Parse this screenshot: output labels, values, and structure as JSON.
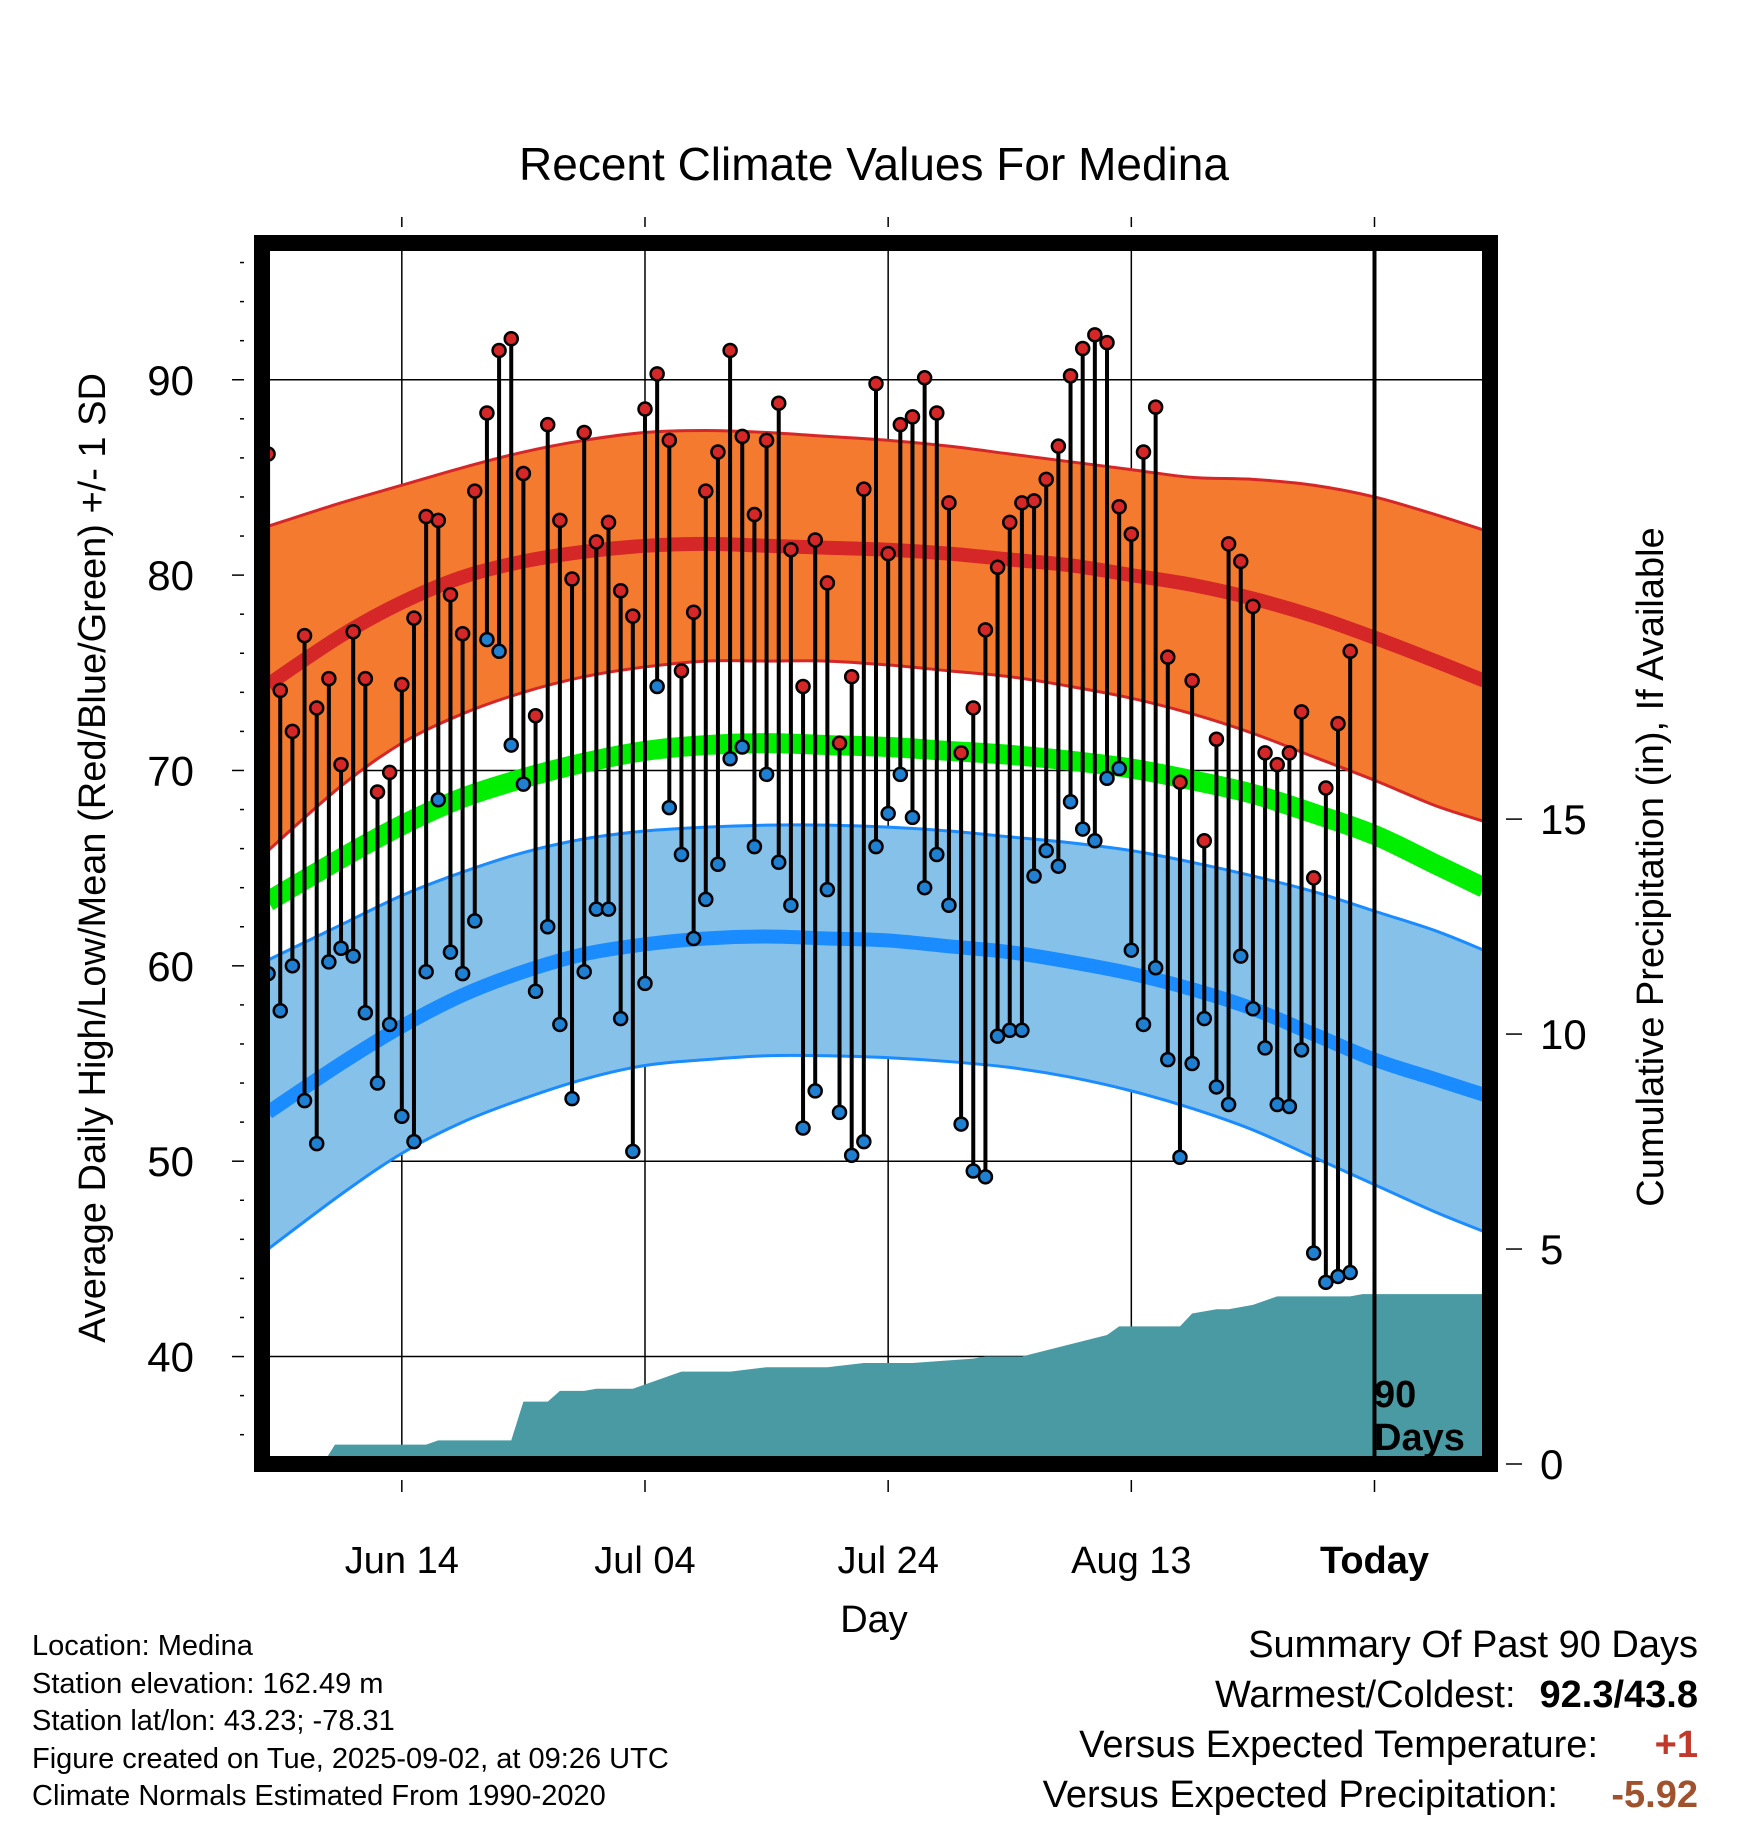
{
  "chart_data": {
    "type": "line",
    "title": "Recent Climate Values For Medina",
    "xlabel": "Day",
    "ylabel": "Average Daily High/Low/Mean (Red/Blue/Green) +/- 1 SD",
    "y2label": "Cumulative Precipitation (in), If Available",
    "ylim": [
      34.5,
      97
    ],
    "y2lim": [
      0,
      28.4
    ],
    "yticks": [
      "40",
      "50",
      "60",
      "70",
      "80",
      "90"
    ],
    "y2ticks": [
      "0",
      "5",
      "10",
      "15"
    ],
    "xlim": [
      -11.5,
      89.5
    ],
    "xticks": [
      {
        "label": "Jun 14",
        "day": 0
      },
      {
        "label": "Jul 04",
        "day": 20
      },
      {
        "label": "Jul 24",
        "day": 40
      },
      {
        "label": "Aug 13",
        "day": 60
      },
      {
        "label": "Today",
        "day": 80
      }
    ],
    "today_day": 80,
    "period_label_line1": "90",
    "period_label_line2": "Days",
    "grid": true,
    "colors": {
      "high_band": "#f47a30",
      "high_line": "#d62728",
      "low_band": "#85c1e9",
      "low_line": "#1a8cff",
      "mean_line": "#00ee00",
      "precip": "#4a9aa4",
      "high_marker": "#d62728",
      "low_marker": "#1f7fd1",
      "warm_value": "#c0392b",
      "precip_value": "#a0522d"
    },
    "normals": {
      "days": [
        -11,
        -5,
        0,
        5,
        10,
        15,
        20,
        25,
        30,
        35,
        40,
        45,
        50,
        55,
        60,
        65,
        70,
        75,
        80,
        85,
        89
      ],
      "high_upper": [
        82.5,
        83.7,
        84.6,
        85.5,
        86.3,
        86.9,
        87.3,
        87.4,
        87.3,
        87.1,
        86.9,
        86.6,
        86.2,
        85.8,
        85.4,
        85.0,
        84.9,
        84.6,
        84.0,
        83.1,
        82.3
      ],
      "high_mean": [
        74.4,
        76.9,
        78.6,
        79.9,
        80.7,
        81.2,
        81.5,
        81.6,
        81.5,
        81.4,
        81.3,
        81.1,
        80.8,
        80.5,
        80.0,
        79.5,
        78.8,
        77.9,
        76.8,
        75.6,
        74.6
      ],
      "high_lower": [
        65.9,
        69.2,
        71.4,
        72.9,
        74.0,
        74.8,
        75.3,
        75.6,
        75.6,
        75.6,
        75.4,
        75.1,
        74.8,
        74.3,
        73.7,
        72.9,
        71.9,
        70.7,
        69.5,
        68.2,
        67.4
      ],
      "mean": [
        63.3,
        65.5,
        67.2,
        68.6,
        69.6,
        70.4,
        71.0,
        71.3,
        71.4,
        71.3,
        71.2,
        71.0,
        70.8,
        70.5,
        70.1,
        69.5,
        68.8,
        67.8,
        66.7,
        65.2,
        64.0
      ],
      "low_upper": [
        60.3,
        62.1,
        63.6,
        64.8,
        65.8,
        66.5,
        66.9,
        67.1,
        67.2,
        67.2,
        67.1,
        66.9,
        66.6,
        66.3,
        65.9,
        65.3,
        64.6,
        63.8,
        62.8,
        61.8,
        60.8
      ],
      "low_mean": [
        52.5,
        55.0,
        56.9,
        58.5,
        59.7,
        60.6,
        61.1,
        61.4,
        61.5,
        61.4,
        61.3,
        61.0,
        60.7,
        60.2,
        59.6,
        58.8,
        57.8,
        56.5,
        55.2,
        54.2,
        53.4
      ],
      "low_lower": [
        45.5,
        48.3,
        50.4,
        52.0,
        53.2,
        54.2,
        54.9,
        55.2,
        55.4,
        55.4,
        55.3,
        55.1,
        54.8,
        54.3,
        53.6,
        52.7,
        51.6,
        50.2,
        48.8,
        47.4,
        46.4
      ]
    },
    "daily": {
      "high": [
        86.2,
        74.1,
        72.0,
        76.9,
        73.2,
        74.7,
        70.3,
        77.1,
        74.7,
        68.9,
        69.9,
        74.4,
        77.8,
        83.0,
        82.8,
        79.0,
        77.0,
        84.3,
        88.3,
        91.5,
        92.1,
        85.2,
        72.8,
        87.7,
        82.8,
        79.8,
        87.3,
        81.7,
        82.7,
        79.2,
        77.9,
        88.5,
        90.3,
        86.9,
        75.1,
        78.1,
        84.3,
        86.3,
        91.5,
        87.1,
        83.1,
        86.9,
        88.8,
        81.3,
        74.3,
        81.8,
        79.6,
        71.4,
        74.8,
        84.4,
        89.8,
        81.1,
        87.7,
        88.1,
        90.1,
        88.3,
        83.7,
        70.9,
        73.2,
        77.2,
        80.4,
        82.7,
        83.7,
        83.8,
        84.9,
        86.6,
        90.2,
        91.6,
        92.3,
        91.9,
        83.5,
        82.1,
        86.3,
        88.6,
        75.8,
        69.4,
        74.6,
        66.4,
        71.6,
        81.6,
        80.7,
        78.4,
        70.9,
        70.3,
        70.9,
        73.0,
        64.5,
        69.1,
        72.4,
        76.1
      ],
      "low": [
        59.6,
        57.7,
        60.0,
        53.1,
        50.9,
        60.2,
        60.9,
        60.5,
        57.6,
        54.0,
        57.0,
        52.3,
        51.0,
        59.7,
        68.5,
        60.7,
        59.6,
        62.3,
        76.7,
        76.1,
        71.3,
        69.3,
        58.7,
        62.0,
        57.0,
        53.2,
        59.7,
        62.9,
        62.9,
        57.3,
        50.5,
        59.1,
        74.3,
        68.1,
        65.7,
        61.4,
        63.4,
        65.2,
        70.6,
        71.2,
        66.1,
        69.8,
        65.3,
        63.1,
        51.7,
        53.6,
        63.9,
        52.5,
        50.3,
        51.0,
        66.1,
        67.8,
        69.8,
        67.6,
        64.0,
        65.7,
        63.1,
        51.9,
        49.5,
        49.2,
        56.4,
        56.7,
        56.7,
        64.6,
        65.9,
        65.1,
        68.4,
        67.0,
        66.4,
        69.6,
        70.1,
        60.8,
        57.0,
        59.9,
        55.2,
        50.2,
        55.0,
        57.3,
        53.8,
        52.9,
        60.5,
        57.8,
        55.8,
        52.9,
        52.8,
        55.7,
        45.3,
        43.8,
        44.1,
        44.3
      ]
    },
    "precip_cumulative": {
      "days": [
        -11,
        -6.5,
        -5.5,
        0,
        2,
        3,
        9,
        10,
        12,
        13,
        15,
        16,
        19,
        22,
        23,
        27,
        30,
        35,
        38,
        42,
        47,
        48,
        51,
        58,
        59,
        64,
        65,
        67,
        68,
        70,
        71,
        72,
        78,
        79,
        89
      ],
      "values": [
        0,
        0,
        0.45,
        0.45,
        0.45,
        0.55,
        0.55,
        1.45,
        1.45,
        1.7,
        1.7,
        1.75,
        1.75,
        2.05,
        2.15,
        2.15,
        2.25,
        2.25,
        2.35,
        2.35,
        2.45,
        2.5,
        2.5,
        3.0,
        3.2,
        3.2,
        3.5,
        3.6,
        3.6,
        3.7,
        3.8,
        3.9,
        3.9,
        3.95,
        3.95
      ]
    }
  },
  "info": {
    "location": "Location: Medina",
    "elevation": "Station elevation: 162.49 m",
    "latlon": "Station lat/lon: 43.23; -78.31",
    "created": "Figure created on Tue, 2025-09-02, at 09:26 UTC",
    "normals_note": "Climate Normals Estimated From 1990-2020"
  },
  "summary": {
    "title": "Summary Of Past 90 Days",
    "warm_cold_label": "Warmest/Coldest:",
    "warm_cold_value": "92.3/43.8",
    "temp_label": "Versus Expected Temperature:",
    "temp_value": "+1",
    "precip_label": "Versus Expected Precipitation:",
    "precip_value": "-5.92"
  }
}
